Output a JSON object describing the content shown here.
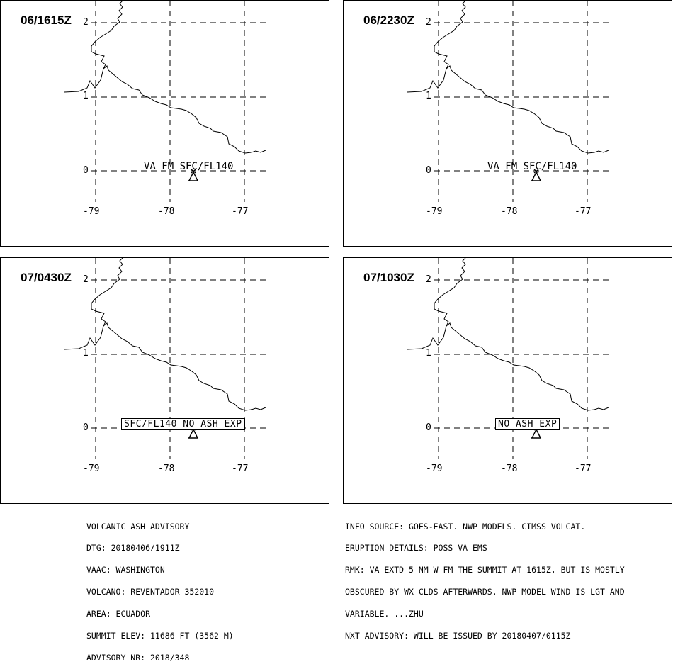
{
  "panels": [
    {
      "time": "06/1615Z",
      "ash_text": "VA FM SFC/FL140",
      "boxed": false,
      "y_labels": [
        "2",
        "1",
        "0"
      ],
      "x_labels": [
        "-79",
        "-78",
        "-77"
      ]
    },
    {
      "time": "06/2230Z",
      "ash_text": "VA FM SFC/FL140",
      "boxed": false,
      "y_labels": [
        "2",
        "1",
        "0"
      ],
      "x_labels": [
        "-79",
        "-78",
        "-77"
      ]
    },
    {
      "time": "07/0430Z",
      "ash_text": "SFC/FL140 NO ASH EXP",
      "boxed": true,
      "y_labels": [
        "2",
        "1",
        "0"
      ],
      "x_labels": [
        "-79",
        "-78",
        "-77"
      ]
    },
    {
      "time": "07/1030Z",
      "ash_text": "NO ASH EXP",
      "boxed": true,
      "y_labels": [
        "2",
        "1",
        "0"
      ],
      "x_labels": [
        "-79",
        "-78",
        "-77"
      ]
    }
  ],
  "advisory_left": [
    "VOLCANIC ASH ADVISORY",
    "DTG: 20180406/1911Z",
    "VAAC: WASHINGTON",
    "VOLCANO: REVENTADOR 352010",
    "AREA: ECUADOR",
    "SUMMIT ELEV: 11686 FT (3562 M)",
    "ADVISORY NR: 2018/348"
  ],
  "advisory_right": [
    "INFO SOURCE: GOES-EAST. NWP MODELS. CIMSS VOLCAT.",
    "ERUPTION DETAILS: POSS VA EMS",
    "RMK: VA EXTD 5 NM W FM THE SUMMIT AT 1615Z, BUT IS MOSTLY",
    "OBSCURED BY WX CLDS AFTERWARDS. NWP MODEL WIND IS LGT AND",
    "VARIABLE. ...ZHU",
    "NXT ADVISORY: WILL BE ISSUED BY 20180407/0115Z"
  ],
  "map": {
    "lon_range": [
      -79.0,
      -77.0
    ],
    "lat_range": [
      0,
      2
    ],
    "graticule_lons": [
      -79,
      -78,
      -77
    ],
    "graticule_lats": [
      2,
      1,
      0
    ],
    "volcano_symbol": "volcano-triangle-icon"
  }
}
